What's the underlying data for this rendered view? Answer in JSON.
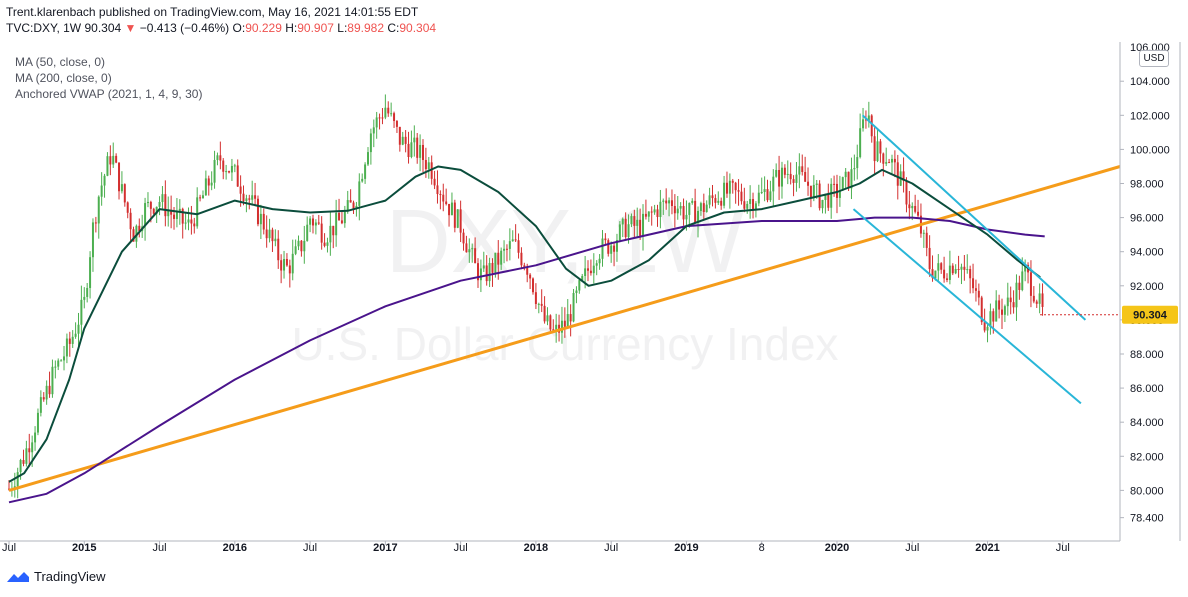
{
  "header": {
    "published": "Trent.klarenbach published on TradingView.com, May 16, 2021 14:01:55 EDT",
    "symbol": "TVC:DXY, 1W",
    "last": "90.304",
    "change_arrow": "▼",
    "change": "−0.413 (−0.46%)",
    "open_label": "O:",
    "open": "90.229",
    "high_label": "H:",
    "high": "90.907",
    "low_label": "L:",
    "low": "89.982",
    "close_label": "C:",
    "close": "90.304"
  },
  "legend": {
    "ma50": "MA (50, close, 0)",
    "ma200": "MA (200, close, 0)",
    "vwap": "Anchored VWAP (2021, 1, 4, 9, 30)"
  },
  "watermark": {
    "symbol": "DXY, 1W",
    "name": "U.S. Dollar Currency Index"
  },
  "currency_badge": "USD",
  "price_label": "90.304",
  "logo_text": "TradingView",
  "colors": {
    "up": "#26a69a",
    "up_candle": "#4caf50",
    "down": "#d32f2f",
    "ma50": "#0b4d3c",
    "ma200": "#4a148c",
    "trendline": "#f59c1a",
    "channel": "#29b6d8",
    "price_tag": "#f5c518"
  },
  "chart_data": {
    "type": "candlestick",
    "title": "",
    "y_axis": {
      "ticks": [
        "104.000",
        "102.000",
        "100.000",
        "98.000",
        "96.000",
        "94.000",
        "92.000",
        "90.000",
        "88.000",
        "86.000",
        "84.000",
        "82.000",
        "80.000",
        "78.400"
      ],
      "top_label": "106.000",
      "range": [
        77.5,
        106.3
      ]
    },
    "x_axis": {
      "ticks": [
        "Jul",
        "2015",
        "Jul",
        "2016",
        "Jul",
        "2017",
        "Jul",
        "2018",
        "Jul",
        "2019",
        "8",
        "2020",
        "Jul",
        "2021",
        "Jul"
      ],
      "tick_dates": [
        2014.5,
        2015.0,
        2015.5,
        2016.0,
        2016.5,
        2017.0,
        2017.5,
        2018.0,
        2018.5,
        2019.0,
        2019.5,
        2020.0,
        2020.5,
        2021.0,
        2021.5
      ],
      "range": [
        2014.48,
        2021.88
      ]
    },
    "price_points": [
      [
        2014.5,
        80.1
      ],
      [
        2014.6,
        82.0
      ],
      [
        2014.7,
        84.5
      ],
      [
        2014.8,
        87.0
      ],
      [
        2014.9,
        88.5
      ],
      [
        2015.0,
        91.0
      ],
      [
        2015.05,
        95.0
      ],
      [
        2015.1,
        97.5
      ],
      [
        2015.18,
        99.8
      ],
      [
        2015.25,
        97.5
      ],
      [
        2015.33,
        95.0
      ],
      [
        2015.4,
        96.5
      ],
      [
        2015.5,
        97.0
      ],
      [
        2015.6,
        96.0
      ],
      [
        2015.7,
        95.5
      ],
      [
        2015.8,
        97.5
      ],
      [
        2015.9,
        99.5
      ],
      [
        2016.0,
        98.5
      ],
      [
        2016.1,
        97.0
      ],
      [
        2016.2,
        95.5
      ],
      [
        2016.3,
        93.5
      ],
      [
        2016.35,
        93.0
      ],
      [
        2016.45,
        94.5
      ],
      [
        2016.5,
        96.0
      ],
      [
        2016.6,
        95.0
      ],
      [
        2016.7,
        95.8
      ],
      [
        2016.8,
        97.0
      ],
      [
        2016.9,
        101.0
      ],
      [
        2017.0,
        102.5
      ],
      [
        2017.1,
        100.5
      ],
      [
        2017.2,
        100.0
      ],
      [
        2017.3,
        99.0
      ],
      [
        2017.4,
        97.0
      ],
      [
        2017.5,
        95.5
      ],
      [
        2017.6,
        93.0
      ],
      [
        2017.65,
        92.5
      ],
      [
        2017.75,
        93.5
      ],
      [
        2017.85,
        94.5
      ],
      [
        2017.95,
        93.0
      ],
      [
        2018.05,
        90.0
      ],
      [
        2018.12,
        89.2
      ],
      [
        2018.2,
        89.8
      ],
      [
        2018.3,
        92.0
      ],
      [
        2018.4,
        94.0
      ],
      [
        2018.5,
        94.5
      ],
      [
        2018.6,
        95.5
      ],
      [
        2018.7,
        95.5
      ],
      [
        2018.8,
        96.5
      ],
      [
        2018.9,
        97.0
      ],
      [
        2019.0,
        96.2
      ],
      [
        2019.1,
        96.5
      ],
      [
        2019.2,
        97.3
      ],
      [
        2019.3,
        97.5
      ],
      [
        2019.4,
        97.0
      ],
      [
        2019.5,
        97.3
      ],
      [
        2019.6,
        98.3
      ],
      [
        2019.7,
        98.8
      ],
      [
        2019.8,
        98.0
      ],
      [
        2019.9,
        97.0
      ],
      [
        2020.0,
        97.5
      ],
      [
        2020.1,
        98.5
      ],
      [
        2020.2,
        102.5
      ],
      [
        2020.25,
        100.0
      ],
      [
        2020.35,
        99.5
      ],
      [
        2020.45,
        97.5
      ],
      [
        2020.55,
        95.5
      ],
      [
        2020.62,
        93.0
      ],
      [
        2020.7,
        92.8
      ],
      [
        2020.8,
        93.5
      ],
      [
        2020.9,
        92.0
      ],
      [
        2020.98,
        90.0
      ],
      [
        2021.05,
        90.5
      ],
      [
        2021.15,
        91.0
      ],
      [
        2021.25,
        92.8
      ],
      [
        2021.32,
        91.5
      ],
      [
        2021.37,
        90.3
      ]
    ],
    "ma50_points": [
      [
        2014.5,
        80.5
      ],
      [
        2014.6,
        81.0
      ],
      [
        2014.75,
        83.0
      ],
      [
        2014.9,
        86.5
      ],
      [
        2015.0,
        89.5
      ],
      [
        2015.25,
        94.0
      ],
      [
        2015.5,
        96.5
      ],
      [
        2015.75,
        96.2
      ],
      [
        2016.0,
        97.0
      ],
      [
        2016.25,
        96.5
      ],
      [
        2016.5,
        96.3
      ],
      [
        2016.75,
        96.4
      ],
      [
        2017.0,
        97.0
      ],
      [
        2017.2,
        98.4
      ],
      [
        2017.35,
        99.0
      ],
      [
        2017.5,
        98.8
      ],
      [
        2017.75,
        97.5
      ],
      [
        2018.0,
        95.5
      ],
      [
        2018.2,
        93.0
      ],
      [
        2018.35,
        92.0
      ],
      [
        2018.5,
        92.3
      ],
      [
        2018.75,
        93.5
      ],
      [
        2019.0,
        95.5
      ],
      [
        2019.25,
        96.3
      ],
      [
        2019.5,
        96.5
      ],
      [
        2019.75,
        97.0
      ],
      [
        2020.0,
        97.5
      ],
      [
        2020.15,
        98.0
      ],
      [
        2020.3,
        98.8
      ],
      [
        2020.5,
        98.0
      ],
      [
        2020.75,
        96.5
      ],
      [
        2021.0,
        95.0
      ],
      [
        2021.2,
        93.5
      ],
      [
        2021.35,
        92.5
      ]
    ],
    "ma200_points": [
      [
        2014.5,
        79.3
      ],
      [
        2014.75,
        79.8
      ],
      [
        2015.0,
        81.0
      ],
      [
        2015.5,
        83.8
      ],
      [
        2016.0,
        86.5
      ],
      [
        2016.5,
        88.8
      ],
      [
        2017.0,
        90.8
      ],
      [
        2017.5,
        92.3
      ],
      [
        2018.0,
        93.2
      ],
      [
        2018.5,
        94.5
      ],
      [
        2019.0,
        95.5
      ],
      [
        2019.5,
        95.8
      ],
      [
        2020.0,
        95.8
      ],
      [
        2020.25,
        96.0
      ],
      [
        2020.5,
        96.0
      ],
      [
        2020.75,
        95.8
      ],
      [
        2021.0,
        95.3
      ],
      [
        2021.25,
        95.0
      ],
      [
        2021.38,
        94.9
      ]
    ],
    "trendline": [
      [
        2014.5,
        80.0
      ],
      [
        2021.88,
        99.0
      ]
    ],
    "channel_upper": [
      [
        2020.17,
        102.0
      ],
      [
        2021.65,
        90.0
      ]
    ],
    "channel_lower": [
      [
        2020.11,
        96.5
      ],
      [
        2021.62,
        85.1
      ]
    ],
    "last_price": 90.304
  }
}
